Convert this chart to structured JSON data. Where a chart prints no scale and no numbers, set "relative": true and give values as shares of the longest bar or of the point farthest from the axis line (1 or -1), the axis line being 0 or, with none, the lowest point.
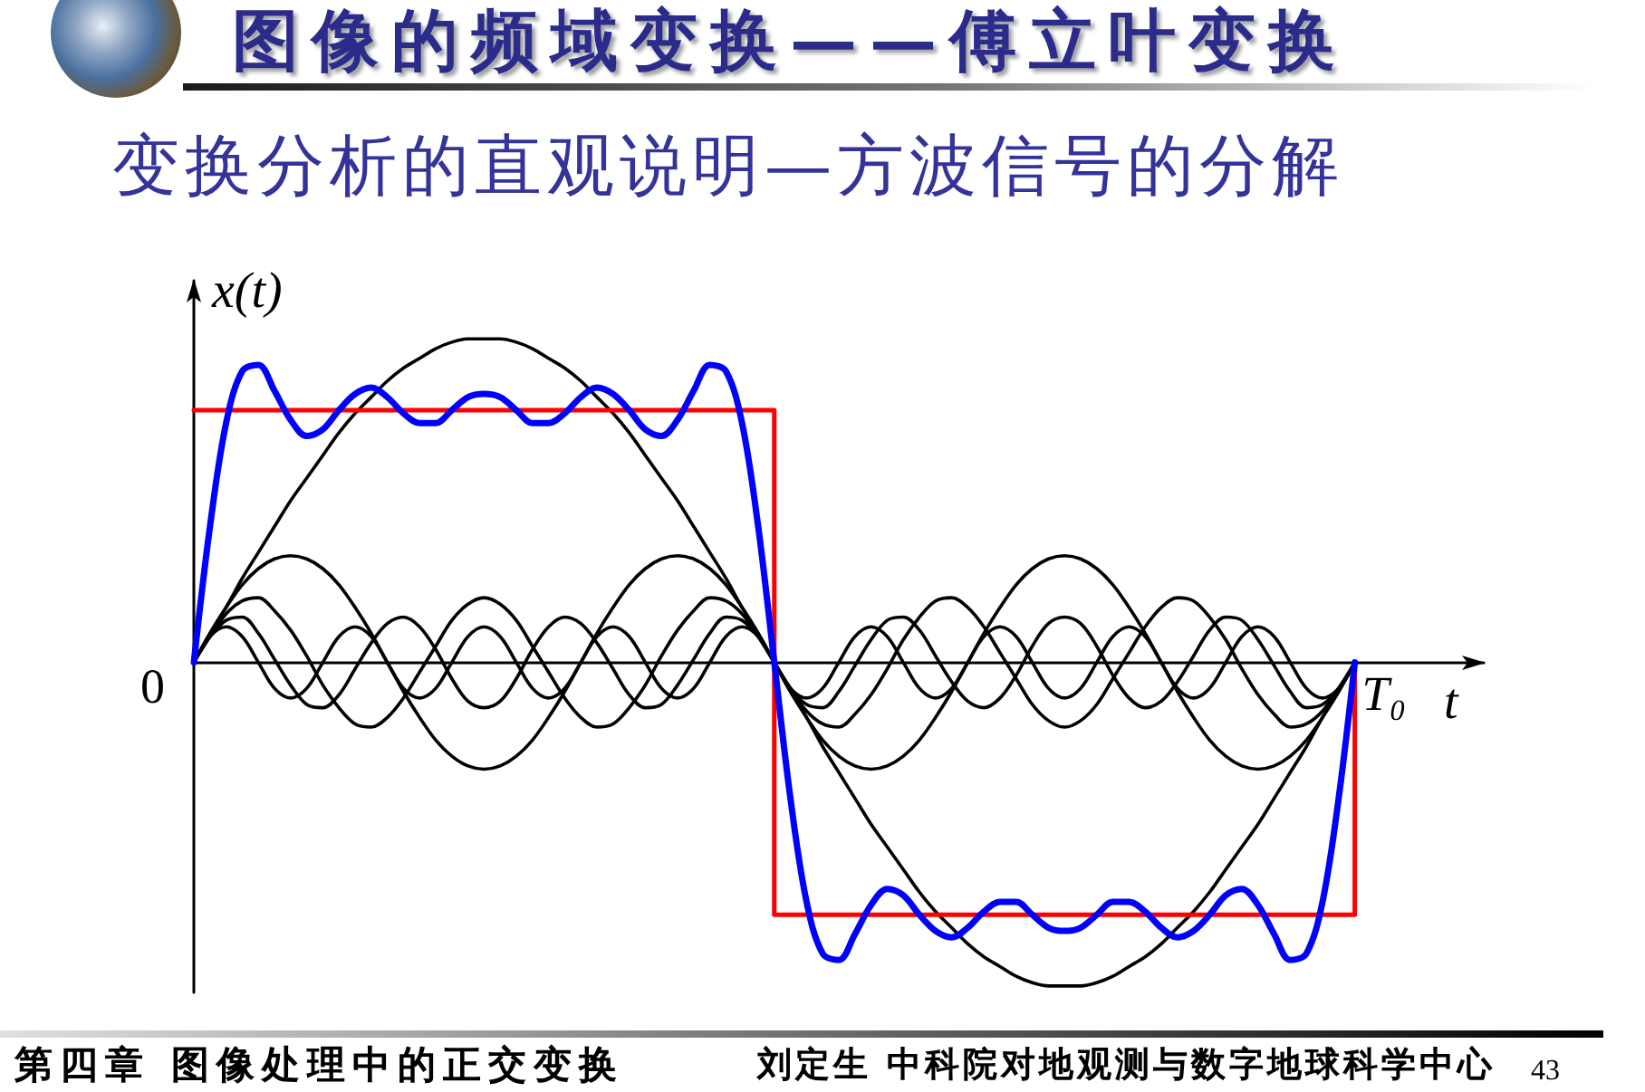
{
  "chart_data": {
    "type": "line",
    "title": "图像的频域变换——傅立叶变换",
    "subtitle": "变换分析的直观说明—方波信号的分解",
    "xlabel": "t",
    "ylabel": "x(t)",
    "annotations": [
      "0",
      "T₀",
      "第四章 图像处理中的正交变换",
      "刘定生 中科院对地观测与数字地球科学中心",
      "43"
    ],
    "relative": true,
    "marker": "none",
    "categories": [
      null,
      null,
      null,
      null,
      null,
      null,
      null,
      null,
      null,
      null,
      null,
      null,
      null,
      null,
      null,
      null,
      null,
      null,
      null,
      null,
      null,
      null,
      null,
      null,
      null,
      null,
      null,
      null,
      null,
      null,
      null,
      null,
      null,
      null,
      null,
      null,
      null,
      null,
      null,
      null,
      null,
      null,
      null,
      null,
      null,
      null,
      null,
      null,
      null,
      null,
      null,
      null,
      null,
      null,
      null,
      null,
      null,
      null,
      null,
      null,
      null,
      null,
      null,
      null,
      null,
      null,
      null,
      null,
      null,
      null,
      null,
      null,
      null,
      null,
      null,
      null,
      null,
      null,
      null,
      null,
      null
    ],
    "series": [
      {
        "color": "#000000",
        "values": [
          0,
          0.09,
          0.17,
          0.26,
          0.34,
          0.42,
          0.5,
          0.57,
          0.64,
          0.71,
          0.77,
          0.82,
          0.87,
          0.91,
          0.94,
          0.97,
          0.99,
          1,
          1,
          1,
          0.99,
          0.97,
          0.94,
          0.91,
          0.87,
          0.82,
          0.77,
          0.71,
          0.64,
          0.57,
          0.5,
          0.42,
          0.34,
          0.26,
          0.17,
          0.09,
          0,
          -0.09,
          -0.17,
          -0.26,
          -0.34,
          -0.42,
          -0.5,
          -0.57,
          -0.64,
          -0.71,
          -0.77,
          -0.82,
          -0.87,
          -0.91,
          -0.94,
          -0.97,
          -0.99,
          -1,
          -1,
          -1,
          -0.99,
          -0.97,
          -0.94,
          -0.91,
          -0.87,
          -0.82,
          -0.77,
          -0.71,
          -0.64,
          -0.57,
          -0.5,
          -0.42,
          -0.34,
          -0.26,
          -0.17,
          -0.09,
          0,
          null,
          null,
          null,
          null,
          null,
          null,
          null,
          null
        ]
      },
      {
        "color": "#000000",
        "values": [
          0,
          0.09,
          0.17,
          0.24,
          0.29,
          0.32,
          0.33,
          0.32,
          0.29,
          0.24,
          0.17,
          0.09,
          0,
          -0.09,
          -0.17,
          -0.24,
          -0.29,
          -0.32,
          -0.33,
          -0.32,
          -0.29,
          -0.24,
          -0.17,
          -0.09,
          0,
          0.09,
          0.17,
          0.24,
          0.29,
          0.32,
          0.33,
          0.32,
          0.29,
          0.24,
          0.17,
          0.09,
          0,
          -0.09,
          -0.17,
          -0.24,
          -0.29,
          -0.32,
          -0.33,
          -0.32,
          -0.29,
          -0.24,
          -0.17,
          -0.09,
          0,
          0.09,
          0.17,
          0.24,
          0.29,
          0.32,
          0.33,
          0.32,
          0.29,
          0.24,
          0.17,
          0.09,
          0,
          -0.09,
          -0.17,
          -0.24,
          -0.29,
          -0.32,
          -0.33,
          -0.32,
          -0.29,
          -0.24,
          -0.17,
          -0.09,
          0,
          null,
          null,
          null,
          null,
          null,
          null,
          null,
          null
        ]
      },
      {
        "color": "#000000",
        "values": [
          0,
          0.08,
          0.15,
          0.19,
          0.2,
          0.16,
          0.1,
          0.02,
          -0.07,
          -0.14,
          -0.19,
          -0.2,
          -0.17,
          -0.11,
          -0.03,
          0.05,
          0.13,
          0.18,
          0.2,
          0.18,
          0.13,
          0.05,
          -0.03,
          -0.11,
          -0.17,
          -0.2,
          -0.19,
          -0.14,
          -0.07,
          0.02,
          0.1,
          0.16,
          0.2,
          0.19,
          0.15,
          0.08,
          0,
          -0.08,
          -0.15,
          -0.19,
          -0.2,
          -0.16,
          -0.1,
          -0.02,
          0.07,
          0.14,
          0.19,
          0.2,
          0.17,
          0.11,
          0.03,
          -0.05,
          -0.13,
          -0.18,
          -0.2,
          -0.18,
          -0.13,
          -0.05,
          0.03,
          0.11,
          0.17,
          0.2,
          0.19,
          0.14,
          0.07,
          -0.02,
          -0.1,
          -0.16,
          -0.2,
          -0.19,
          -0.15,
          -0.08,
          0,
          null,
          null,
          null,
          null,
          null,
          null,
          null,
          null
        ]
      },
      {
        "color": "#000000",
        "values": [
          0,
          0.08,
          0.13,
          0.14,
          0.09,
          0.01,
          -0.07,
          -0.13,
          -0.14,
          -0.1,
          -0.02,
          0.06,
          0.12,
          0.14,
          0.11,
          0.04,
          -0.05,
          -0.12,
          -0.14,
          -0.12,
          -0.05,
          0.04,
          0.11,
          0.14,
          0.12,
          0.06,
          -0.02,
          -0.1,
          -0.14,
          -0.13,
          -0.07,
          0.01,
          0.09,
          0.14,
          0.13,
          0.08,
          0,
          -0.08,
          -0.13,
          -0.14,
          -0.09,
          -0.01,
          0.07,
          0.13,
          0.14,
          0.1,
          0.02,
          -0.06,
          -0.12,
          -0.14,
          -0.11,
          -0.04,
          0.05,
          0.12,
          0.14,
          0.12,
          0.05,
          -0.04,
          -0.11,
          -0.14,
          -0.12,
          -0.06,
          0.02,
          0.1,
          0.14,
          0.13,
          0.07,
          -0.01,
          -0.09,
          -0.14,
          -0.13,
          -0.08,
          0,
          null,
          null,
          null,
          null,
          null,
          null,
          null,
          null
        ]
      },
      {
        "color": "#000000",
        "values": [
          0,
          0.08,
          0.11,
          0.08,
          0,
          -0.08,
          -0.11,
          -0.08,
          0,
          0.08,
          0.11,
          0.08,
          0,
          -0.08,
          -0.11,
          -0.08,
          0,
          0.08,
          0.11,
          0.08,
          0,
          -0.08,
          -0.11,
          -0.08,
          0,
          0.08,
          0.11,
          0.08,
          0,
          -0.08,
          -0.11,
          -0.08,
          0,
          0.08,
          0.11,
          0.08,
          0,
          -0.08,
          -0.11,
          -0.08,
          0,
          0.08,
          0.11,
          0.08,
          0,
          -0.08,
          -0.11,
          -0.08,
          0,
          0.08,
          0.11,
          0.08,
          0,
          -0.08,
          -0.11,
          -0.08,
          0,
          0.08,
          0.11,
          0.08,
          0,
          -0.08,
          -0.11,
          -0.08,
          0,
          0.08,
          0.11,
          0.08,
          0,
          -0.08,
          -0.11,
          -0.08,
          0,
          null,
          null,
          null,
          null,
          null,
          null,
          null,
          null
        ]
      },
      {
        "type": "step",
        "color": "#ff0000",
        "values": [
          0.78,
          0.78,
          0.78,
          0.78,
          0.78,
          0.78,
          0.78,
          0.78,
          0.78,
          0.78,
          0.78,
          0.78,
          0.78,
          0.78,
          0.78,
          0.78,
          0.78,
          0.78,
          0.78,
          0.78,
          0.78,
          0.78,
          0.78,
          0.78,
          0.78,
          0.78,
          0.78,
          0.78,
          0.78,
          0.78,
          0.78,
          0.78,
          0.78,
          0.78,
          0.78,
          0.78,
          -0.78,
          -0.78,
          -0.78,
          -0.78,
          -0.78,
          -0.78,
          -0.78,
          -0.78,
          -0.78,
          -0.78,
          -0.78,
          -0.78,
          -0.78,
          -0.78,
          -0.78,
          -0.78,
          -0.78,
          -0.78,
          -0.78,
          -0.78,
          -0.78,
          -0.78,
          -0.78,
          -0.78,
          -0.78,
          -0.78,
          -0.78,
          -0.78,
          -0.78,
          -0.78,
          -0.78,
          -0.78,
          -0.78,
          -0.78,
          -0.78,
          -0.78,
          0,
          null,
          null,
          null,
          null,
          null,
          null,
          null,
          null
        ]
      },
      {
        "color": "#0000ff",
        "values": [
          0,
          0.42,
          0.74,
          0.9,
          0.92,
          0.84,
          0.75,
          0.7,
          0.72,
          0.78,
          0.83,
          0.85,
          0.82,
          0.77,
          0.74,
          0.74,
          0.78,
          0.82,
          0.83,
          0.82,
          0.78,
          0.74,
          0.74,
          0.77,
          0.82,
          0.85,
          0.83,
          0.78,
          0.72,
          0.7,
          0.75,
          0.84,
          0.92,
          0.9,
          0.74,
          0.42,
          0,
          -0.42,
          -0.74,
          -0.9,
          -0.92,
          -0.84,
          -0.75,
          -0.7,
          -0.72,
          -0.78,
          -0.83,
          -0.85,
          -0.82,
          -0.77,
          -0.74,
          -0.74,
          -0.78,
          -0.82,
          -0.83,
          -0.82,
          -0.78,
          -0.74,
          -0.74,
          -0.77,
          -0.82,
          -0.85,
          -0.83,
          -0.78,
          -0.72,
          -0.7,
          -0.75,
          -0.84,
          -0.92,
          -0.9,
          -0.74,
          -0.42,
          0,
          null,
          null,
          null,
          null,
          null,
          null,
          null,
          null
        ]
      }
    ]
  }
}
